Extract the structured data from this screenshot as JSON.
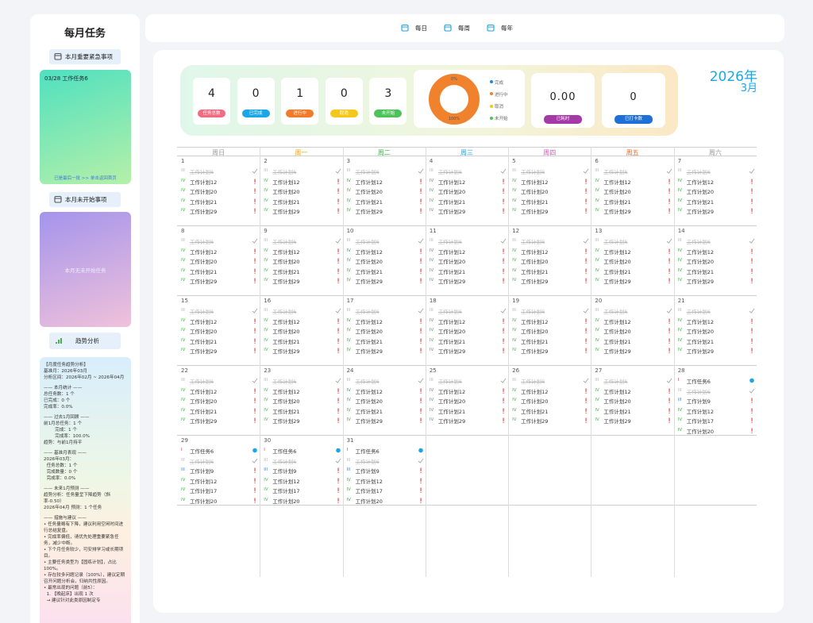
{
  "sidebar": {
    "title": "每月任务",
    "urgent": {
      "button": "本月重要紧急事项",
      "items": [
        "03/28 工作任务6"
      ],
      "footer": "已是最后一批 >> 单击返回首页"
    },
    "not_started": {
      "button": "本月未开始事项",
      "empty": "本月无未开始任务"
    },
    "trend": {
      "button": "趋势分析",
      "lines": [
        "【月度任务趋势分析】",
        "基准月：2026年03月",
        "分析区间：2026年02月 ~ 2026年04月",
        "—— 本月统计 ——",
        "总任务数：1 个",
        "已完成：0 个",
        "完成率：0.0%",
        "—— 过去1月回顾 ——",
        "前1月总任务：1 个",
        "        完成：1 个",
        "        完成率：100.0%",
        "趋势：与前1月持平",
        "—— 基准月表现 ——",
        "2026年03月：",
        "  任务总数：1 个",
        "  完成数量：0 个",
        "  完成率：0.0%",
        "—— 未来1月预测 ——",
        "趋势分析：任务量呈下降趋势（斜率-0.50）",
        "2026年04月 预测：1 个任务",
        "—— 措施与建议 ——",
        "• 任务量略有下降，建议利用空闲时间进行总结复盘。",
        "• 完成率偏低，请优先处理重要紧急任务，减少中断。",
        "• 下个月任务较少，可安排学习或长期项目。",
        "• 主要任务类型为【固练计划】，占比 100%。",
        "• 存在较多问题记录（100%），建议定期召开问题分析会，归纳共性原因。",
        "• 最常出现的问题（前5）：",
        "  1. 【晚起床】出现 1 次",
        "  → 建议针对此类原因制定专"
      ]
    }
  },
  "tabs": [
    "每日",
    "每周",
    "每年"
  ],
  "stats": [
    {
      "value": "4",
      "label": "任务总数",
      "color": "#f26b80"
    },
    {
      "value": "0",
      "label": "已完成",
      "color": "#1ba6e6"
    },
    {
      "value": "1",
      "label": "进行中",
      "color": "#f27b2a"
    },
    {
      "value": "0",
      "label": "取消",
      "color": "#f5c71a"
    },
    {
      "value": "3",
      "label": "未开始",
      "color": "#4cc35a"
    }
  ],
  "donut": {
    "legend": [
      {
        "name": "完成",
        "color": "#1e88e5"
      },
      {
        "name": "进行中",
        "color": "#f0822e"
      },
      {
        "name": "取消",
        "color": "#f5c71a"
      },
      {
        "name": "未开始",
        "color": "#4cc35a"
      }
    ],
    "slices": [
      {
        "value": 0,
        "label": "0%",
        "color": "#1e88e5"
      },
      {
        "value": 100,
        "label": "100%",
        "color": "#f0822e"
      }
    ]
  },
  "extra": [
    {
      "value": "0.00",
      "label": "已耗时",
      "color": "#a53aa6"
    },
    {
      "value": "0",
      "label": "已打卡数",
      "color": "#1e6fd6"
    }
  ],
  "year": "2026年",
  "month": "3月",
  "weekdays": [
    {
      "name": "周日",
      "color": "#9a9a9a"
    },
    {
      "name": "周一",
      "color": "#f2a20c"
    },
    {
      "name": "周二",
      "color": "#3cb04a"
    },
    {
      "name": "周三",
      "color": "#1ba6e6"
    },
    {
      "name": "周四",
      "color": "#d94fc4"
    },
    {
      "name": "周五",
      "color": "#f2641e"
    },
    {
      "name": "周六",
      "color": "#9a9a9a"
    }
  ],
  "days": [
    {
      "day": 1,
      "tasks": [
        [
          "III",
          "工作计划6",
          "done"
        ],
        [
          "IV",
          "工作计划12",
          "pending"
        ],
        [
          "IV",
          "工作计划20",
          "pending"
        ],
        [
          "IV",
          "工作计划21",
          "pending"
        ],
        [
          "IV",
          "工作计划29",
          "pending"
        ]
      ]
    },
    {
      "day": 2,
      "tasks": [
        [
          "III",
          "工作计划6",
          "done"
        ],
        [
          "IV",
          "工作计划12",
          "pending"
        ],
        [
          "IV",
          "工作计划20",
          "pending"
        ],
        [
          "IV",
          "工作计划21",
          "pending"
        ],
        [
          "IV",
          "工作计划29",
          "pending"
        ]
      ]
    },
    {
      "day": 3,
      "tasks": [
        [
          "III",
          "工作计划6",
          "done"
        ],
        [
          "IV",
          "工作计划12",
          "pending"
        ],
        [
          "IV",
          "工作计划20",
          "pending"
        ],
        [
          "IV",
          "工作计划21",
          "pending"
        ],
        [
          "IV",
          "工作计划29",
          "pending"
        ]
      ]
    },
    {
      "day": 4,
      "tasks": [
        [
          "III",
          "工作计划6",
          "done"
        ],
        [
          "IV",
          "工作计划12",
          "pending"
        ],
        [
          "IV",
          "工作计划20",
          "pending"
        ],
        [
          "IV",
          "工作计划21",
          "pending"
        ],
        [
          "IV",
          "工作计划29",
          "pending"
        ]
      ]
    },
    {
      "day": 5,
      "tasks": [
        [
          "III",
          "工作计划6",
          "done"
        ],
        [
          "IV",
          "工作计划12",
          "pending"
        ],
        [
          "IV",
          "工作计划20",
          "pending"
        ],
        [
          "IV",
          "工作计划21",
          "pending"
        ],
        [
          "IV",
          "工作计划29",
          "pending"
        ]
      ]
    },
    {
      "day": 6,
      "tasks": [
        [
          "III",
          "工作计划6",
          "done"
        ],
        [
          "IV",
          "工作计划12",
          "pending"
        ],
        [
          "IV",
          "工作计划20",
          "pending"
        ],
        [
          "IV",
          "工作计划21",
          "pending"
        ],
        [
          "IV",
          "工作计划29",
          "pending"
        ]
      ]
    },
    {
      "day": 7,
      "tasks": [
        [
          "III",
          "工作计划6",
          "done"
        ],
        [
          "IV",
          "工作计划12",
          "pending"
        ],
        [
          "IV",
          "工作计划20",
          "pending"
        ],
        [
          "IV",
          "工作计划21",
          "pending"
        ],
        [
          "IV",
          "工作计划29",
          "pending"
        ]
      ]
    },
    {
      "day": 8,
      "tasks": [
        [
          "III",
          "工作计划6",
          "done"
        ],
        [
          "IV",
          "工作计划12",
          "pending"
        ],
        [
          "IV",
          "工作计划20",
          "pending"
        ],
        [
          "IV",
          "工作计划21",
          "pending"
        ],
        [
          "IV",
          "工作计划29",
          "pending"
        ]
      ]
    },
    {
      "day": 9,
      "tasks": [
        [
          "III",
          "工作计划6",
          "done"
        ],
        [
          "IV",
          "工作计划12",
          "pending"
        ],
        [
          "IV",
          "工作计划20",
          "pending"
        ],
        [
          "IV",
          "工作计划21",
          "pending"
        ],
        [
          "IV",
          "工作计划29",
          "pending"
        ]
      ]
    },
    {
      "day": 10,
      "tasks": [
        [
          "III",
          "工作计划6",
          "done"
        ],
        [
          "IV",
          "工作计划12",
          "pending"
        ],
        [
          "IV",
          "工作计划20",
          "pending"
        ],
        [
          "IV",
          "工作计划21",
          "pending"
        ],
        [
          "IV",
          "工作计划29",
          "pending"
        ]
      ]
    },
    {
      "day": 11,
      "tasks": [
        [
          "III",
          "工作计划6",
          "done"
        ],
        [
          "IV",
          "工作计划12",
          "pending"
        ],
        [
          "IV",
          "工作计划20",
          "pending"
        ],
        [
          "IV",
          "工作计划21",
          "pending"
        ],
        [
          "IV",
          "工作计划29",
          "pending"
        ]
      ]
    },
    {
      "day": 12,
      "tasks": [
        [
          "III",
          "工作计划6",
          "done"
        ],
        [
          "IV",
          "工作计划12",
          "pending"
        ],
        [
          "IV",
          "工作计划20",
          "pending"
        ],
        [
          "IV",
          "工作计划21",
          "pending"
        ],
        [
          "IV",
          "工作计划29",
          "pending"
        ]
      ]
    },
    {
      "day": 13,
      "tasks": [
        [
          "III",
          "工作计划6",
          "done"
        ],
        [
          "IV",
          "工作计划12",
          "pending"
        ],
        [
          "IV",
          "工作计划20",
          "pending"
        ],
        [
          "IV",
          "工作计划21",
          "pending"
        ],
        [
          "IV",
          "工作计划29",
          "pending"
        ]
      ]
    },
    {
      "day": 14,
      "tasks": [
        [
          "III",
          "工作计划6",
          "done"
        ],
        [
          "IV",
          "工作计划12",
          "pending"
        ],
        [
          "IV",
          "工作计划20",
          "pending"
        ],
        [
          "IV",
          "工作计划21",
          "pending"
        ],
        [
          "IV",
          "工作计划29",
          "pending"
        ]
      ]
    },
    {
      "day": 15,
      "tasks": [
        [
          "III",
          "工作计划6",
          "done"
        ],
        [
          "IV",
          "工作计划12",
          "pending"
        ],
        [
          "IV",
          "工作计划20",
          "pending"
        ],
        [
          "IV",
          "工作计划21",
          "pending"
        ],
        [
          "IV",
          "工作计划29",
          "pending"
        ]
      ]
    },
    {
      "day": 16,
      "tasks": [
        [
          "III",
          "工作计划6",
          "done"
        ],
        [
          "IV",
          "工作计划12",
          "pending"
        ],
        [
          "IV",
          "工作计划20",
          "pending"
        ],
        [
          "IV",
          "工作计划21",
          "pending"
        ],
        [
          "IV",
          "工作计划29",
          "pending"
        ]
      ]
    },
    {
      "day": 17,
      "tasks": [
        [
          "III",
          "工作计划6",
          "done"
        ],
        [
          "IV",
          "工作计划12",
          "pending"
        ],
        [
          "IV",
          "工作计划20",
          "pending"
        ],
        [
          "IV",
          "工作计划21",
          "pending"
        ],
        [
          "IV",
          "工作计划29",
          "pending"
        ]
      ]
    },
    {
      "day": 18,
      "tasks": [
        [
          "III",
          "工作计划6",
          "done"
        ],
        [
          "IV",
          "工作计划12",
          "pending"
        ],
        [
          "IV",
          "工作计划20",
          "pending"
        ],
        [
          "IV",
          "工作计划21",
          "pending"
        ],
        [
          "IV",
          "工作计划29",
          "pending"
        ]
      ]
    },
    {
      "day": 19,
      "tasks": [
        [
          "III",
          "工作计划6",
          "done"
        ],
        [
          "IV",
          "工作计划12",
          "pending"
        ],
        [
          "IV",
          "工作计划20",
          "pending"
        ],
        [
          "IV",
          "工作计划21",
          "pending"
        ],
        [
          "IV",
          "工作计划29",
          "pending"
        ]
      ]
    },
    {
      "day": 20,
      "tasks": [
        [
          "III",
          "工作计划6",
          "done"
        ],
        [
          "IV",
          "工作计划12",
          "pending"
        ],
        [
          "IV",
          "工作计划20",
          "pending"
        ],
        [
          "IV",
          "工作计划21",
          "pending"
        ],
        [
          "IV",
          "工作计划29",
          "pending"
        ]
      ]
    },
    {
      "day": 21,
      "tasks": [
        [
          "III",
          "工作计划6",
          "done"
        ],
        [
          "IV",
          "工作计划12",
          "pending"
        ],
        [
          "IV",
          "工作计划20",
          "pending"
        ],
        [
          "IV",
          "工作计划21",
          "pending"
        ],
        [
          "IV",
          "工作计划29",
          "pending"
        ]
      ]
    },
    {
      "day": 22,
      "tasks": [
        [
          "III",
          "工作计划6",
          "done"
        ],
        [
          "IV",
          "工作计划12",
          "pending"
        ],
        [
          "IV",
          "工作计划20",
          "pending"
        ],
        [
          "IV",
          "工作计划21",
          "pending"
        ],
        [
          "IV",
          "工作计划29",
          "pending"
        ]
      ]
    },
    {
      "day": 23,
      "tasks": [
        [
          "III",
          "工作计划6",
          "done"
        ],
        [
          "IV",
          "工作计划12",
          "pending"
        ],
        [
          "IV",
          "工作计划20",
          "pending"
        ],
        [
          "IV",
          "工作计划21",
          "pending"
        ],
        [
          "IV",
          "工作计划29",
          "pending"
        ]
      ]
    },
    {
      "day": 24,
      "tasks": [
        [
          "III",
          "工作计划6",
          "done"
        ],
        [
          "IV",
          "工作计划12",
          "pending"
        ],
        [
          "IV",
          "工作计划20",
          "pending"
        ],
        [
          "IV",
          "工作计划21",
          "pending"
        ],
        [
          "IV",
          "工作计划29",
          "pending"
        ]
      ]
    },
    {
      "day": 25,
      "tasks": [
        [
          "III",
          "工作计划6",
          "done"
        ],
        [
          "IV",
          "工作计划12",
          "pending"
        ],
        [
          "IV",
          "工作计划20",
          "pending"
        ],
        [
          "IV",
          "工作计划21",
          "pending"
        ],
        [
          "IV",
          "工作计划29",
          "pending"
        ]
      ]
    },
    {
      "day": 26,
      "tasks": [
        [
          "III",
          "工作计划6",
          "done"
        ],
        [
          "IV",
          "工作计划12",
          "pending"
        ],
        [
          "IV",
          "工作计划20",
          "pending"
        ],
        [
          "IV",
          "工作计划21",
          "pending"
        ],
        [
          "IV",
          "工作计划29",
          "pending"
        ]
      ]
    },
    {
      "day": 27,
      "tasks": [
        [
          "III",
          "工作计划6",
          "done"
        ],
        [
          "IV",
          "工作计划12",
          "pending"
        ],
        [
          "IV",
          "工作计划20",
          "pending"
        ],
        [
          "IV",
          "工作计划21",
          "pending"
        ],
        [
          "IV",
          "工作计划29",
          "pending"
        ]
      ]
    },
    {
      "day": 28,
      "tasks": [
        [
          "I",
          "工作任务6",
          "active"
        ],
        [
          "III",
          "工作计划6",
          "done"
        ],
        [
          "III",
          "工作计划9",
          "pending"
        ],
        [
          "IV",
          "工作计划12",
          "pending"
        ],
        [
          "IV",
          "工作计划17",
          "pending"
        ],
        [
          "IV",
          "工作计划20",
          "pending"
        ]
      ]
    },
    {
      "day": 29,
      "tasks": [
        [
          "I",
          "工作任务6",
          "active"
        ],
        [
          "III",
          "工作计划6",
          "done"
        ],
        [
          "III",
          "工作计划9",
          "pending"
        ],
        [
          "IV",
          "工作计划12",
          "pending"
        ],
        [
          "IV",
          "工作计划17",
          "pending"
        ],
        [
          "IV",
          "工作计划20",
          "pending"
        ]
      ]
    },
    {
      "day": 30,
      "tasks": [
        [
          "I",
          "工作任务6",
          "active"
        ],
        [
          "III",
          "工作计划6",
          "done"
        ],
        [
          "III",
          "工作计划9",
          "pending"
        ],
        [
          "IV",
          "工作计划12",
          "pending"
        ],
        [
          "IV",
          "工作计划17",
          "pending"
        ],
        [
          "IV",
          "工作计划20",
          "pending"
        ]
      ]
    },
    {
      "day": 31,
      "tasks": [
        [
          "I",
          "工作任务6",
          "active"
        ],
        [
          "III",
          "工作计划6",
          "done"
        ],
        [
          "III",
          "工作计划9",
          "pending"
        ],
        [
          "IV",
          "工作计划12",
          "pending"
        ],
        [
          "IV",
          "工作计划17",
          "pending"
        ],
        [
          "IV",
          "工作计划20",
          "pending"
        ]
      ]
    }
  ]
}
